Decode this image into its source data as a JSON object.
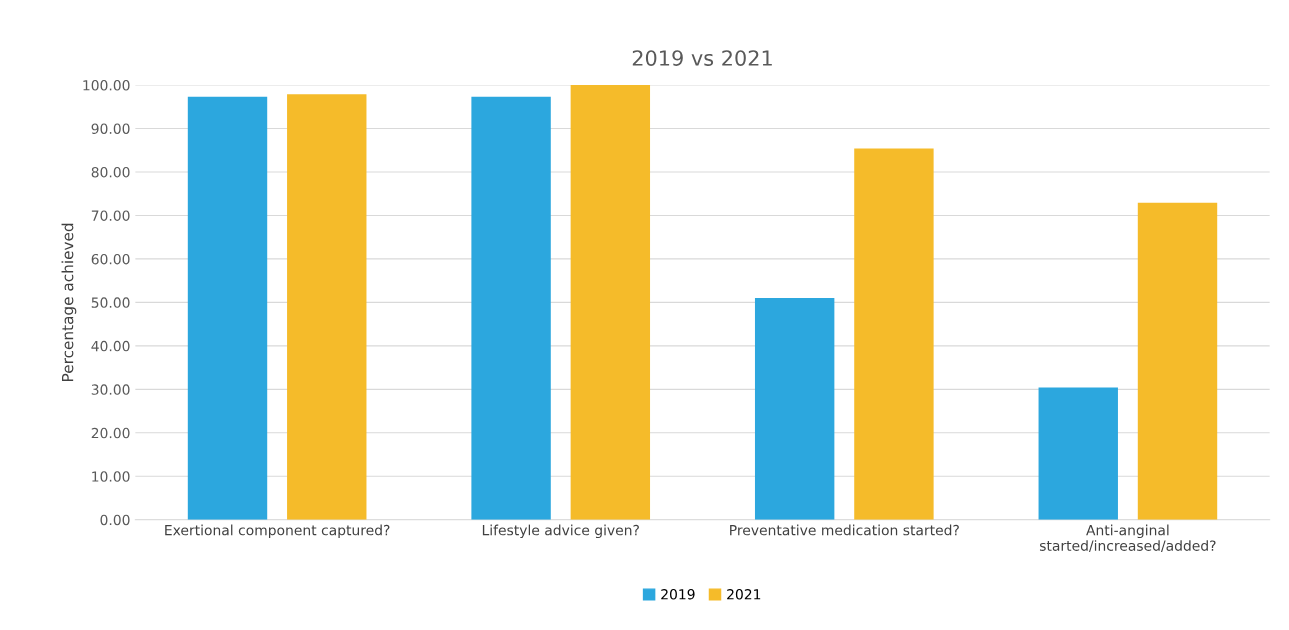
{
  "chart_data": {
    "type": "bar",
    "title": "2019 vs 2021",
    "ylabel": "Percentage achieved",
    "categories": [
      "Exertional component captured?",
      "Lifestyle advice given?",
      "Preventative medication started?",
      "Anti-anginal\nstarted/increased/added?"
    ],
    "series": [
      {
        "name": "2019",
        "color": "#2ca7de",
        "values": [
          97.3,
          97.3,
          51.0,
          30.4
        ]
      },
      {
        "name": "2021",
        "color": "#f5bb2a",
        "values": [
          97.9,
          100.0,
          85.4,
          72.9
        ]
      }
    ],
    "ylim": [
      0,
      100
    ],
    "yticks": [
      {
        "value": 0,
        "label": "0.00"
      },
      {
        "value": 10,
        "label": "10.00"
      },
      {
        "value": 20,
        "label": "20.00"
      },
      {
        "value": 30,
        "label": "30.00"
      },
      {
        "value": 40,
        "label": "40.00"
      },
      {
        "value": 50,
        "label": "50.00"
      },
      {
        "value": 60,
        "label": "60.00"
      },
      {
        "value": 70,
        "label": "70.00"
      },
      {
        "value": 80,
        "label": "80.00"
      },
      {
        "value": 90,
        "label": "90.00"
      },
      {
        "value": 100,
        "label": "100.00"
      }
    ],
    "grid": "y",
    "legend": "bottom"
  }
}
